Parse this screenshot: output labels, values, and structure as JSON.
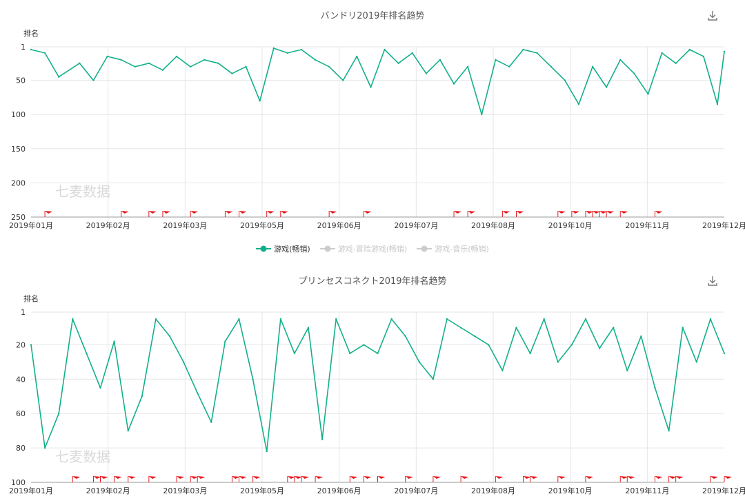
{
  "watermark": "七麦数据",
  "accent": "#12b08a",
  "flag_color": "#e8191e",
  "legend": {
    "items": [
      {
        "label": "游戏(畅销)",
        "active": true,
        "color": "#12b08a"
      },
      {
        "label": "游戏-冒险游戏(畅销)",
        "active": false,
        "color": "#cccccc"
      },
      {
        "label": "游戏-音乐(畅销)",
        "active": false,
        "color": "#cccccc"
      }
    ]
  },
  "chart_data": [
    {
      "type": "line",
      "title": "バンドリ2019年排名趋势",
      "ylabel": "排名",
      "y_inverted": true,
      "yticks": [
        1,
        50,
        100,
        150,
        200,
        250
      ],
      "ylim": [
        1,
        250
      ],
      "x_tick_labels": [
        "2019年01月",
        "2019年02月",
        "2019年03月",
        "2019年05月",
        "2019年06月",
        "2019年07月",
        "2019年08月",
        "2019年10月",
        "2019年11月",
        "2019年12月"
      ],
      "grid": true,
      "series": [
        {
          "name": "游戏(畅销)",
          "x": [
            0,
            0.02,
            0.04,
            0.07,
            0.09,
            0.11,
            0.13,
            0.15,
            0.17,
            0.19,
            0.21,
            0.23,
            0.25,
            0.27,
            0.29,
            0.31,
            0.33,
            0.35,
            0.37,
            0.39,
            0.41,
            0.43,
            0.45,
            0.47,
            0.49,
            0.51,
            0.53,
            0.55,
            0.57,
            0.59,
            0.61,
            0.63,
            0.65,
            0.67,
            0.69,
            0.71,
            0.73,
            0.75,
            0.77,
            0.79,
            0.81,
            0.83,
            0.85,
            0.87,
            0.89,
            0.91,
            0.93,
            0.95,
            0.97,
            0.99,
            1.0
          ],
          "values": [
            5,
            10,
            45,
            25,
            50,
            15,
            20,
            30,
            25,
            35,
            15,
            30,
            20,
            25,
            40,
            30,
            80,
            3,
            10,
            5,
            20,
            30,
            50,
            15,
            60,
            5,
            25,
            10,
            40,
            20,
            55,
            30,
            100,
            20,
            30,
            5,
            10,
            30,
            50,
            85,
            30,
            60,
            20,
            40,
            70,
            10,
            25,
            5,
            15,
            85,
            8
          ]
        }
      ],
      "flags_x": [
        0.02,
        0.13,
        0.17,
        0.19,
        0.23,
        0.28,
        0.3,
        0.34,
        0.36,
        0.43,
        0.48,
        0.61,
        0.63,
        0.68,
        0.7,
        0.76,
        0.78,
        0.8,
        0.81,
        0.82,
        0.83,
        0.85,
        0.9
      ]
    },
    {
      "type": "line",
      "title": "プリンセスコネクト2019年排名趋势",
      "ylabel": "排名",
      "y_inverted": true,
      "yticks": [
        1,
        20,
        40,
        60,
        80,
        100
      ],
      "ylim": [
        1,
        100
      ],
      "x_tick_labels": [
        "2019年01月",
        "2019年02月",
        "2019年03月",
        "2019年05月",
        "2019年06月",
        "2019年07月",
        "2019年08月",
        "2019年10月",
        "2019年11月",
        "2019年12月"
      ],
      "grid": true,
      "series": [
        {
          "name": "游戏(畅销)",
          "x": [
            0,
            0.02,
            0.04,
            0.06,
            0.08,
            0.1,
            0.12,
            0.14,
            0.16,
            0.18,
            0.2,
            0.22,
            0.24,
            0.26,
            0.28,
            0.3,
            0.32,
            0.34,
            0.36,
            0.38,
            0.4,
            0.42,
            0.44,
            0.46,
            0.48,
            0.5,
            0.52,
            0.54,
            0.56,
            0.58,
            0.6,
            0.62,
            0.64,
            0.66,
            0.68,
            0.7,
            0.72,
            0.74,
            0.76,
            0.78,
            0.8,
            0.82,
            0.84,
            0.86,
            0.88,
            0.9,
            0.92,
            0.94,
            0.96,
            0.98,
            1.0
          ],
          "values": [
            20,
            80,
            60,
            5,
            25,
            45,
            18,
            70,
            50,
            5,
            15,
            30,
            48,
            65,
            18,
            5,
            40,
            82,
            5,
            25,
            10,
            75,
            5,
            25,
            20,
            25,
            5,
            15,
            30,
            40,
            5,
            10,
            15,
            20,
            35,
            10,
            25,
            5,
            30,
            20,
            5,
            22,
            10,
            35,
            15,
            45,
            70,
            10,
            30,
            5,
            25
          ]
        }
      ],
      "flags_x": [
        0.06,
        0.09,
        0.1,
        0.12,
        0.14,
        0.17,
        0.21,
        0.23,
        0.24,
        0.29,
        0.3,
        0.32,
        0.37,
        0.38,
        0.39,
        0.41,
        0.46,
        0.48,
        0.5,
        0.54,
        0.58,
        0.62,
        0.67,
        0.71,
        0.72,
        0.76,
        0.8,
        0.85,
        0.86,
        0.9,
        0.92,
        0.93,
        0.98,
        1.0
      ]
    }
  ]
}
